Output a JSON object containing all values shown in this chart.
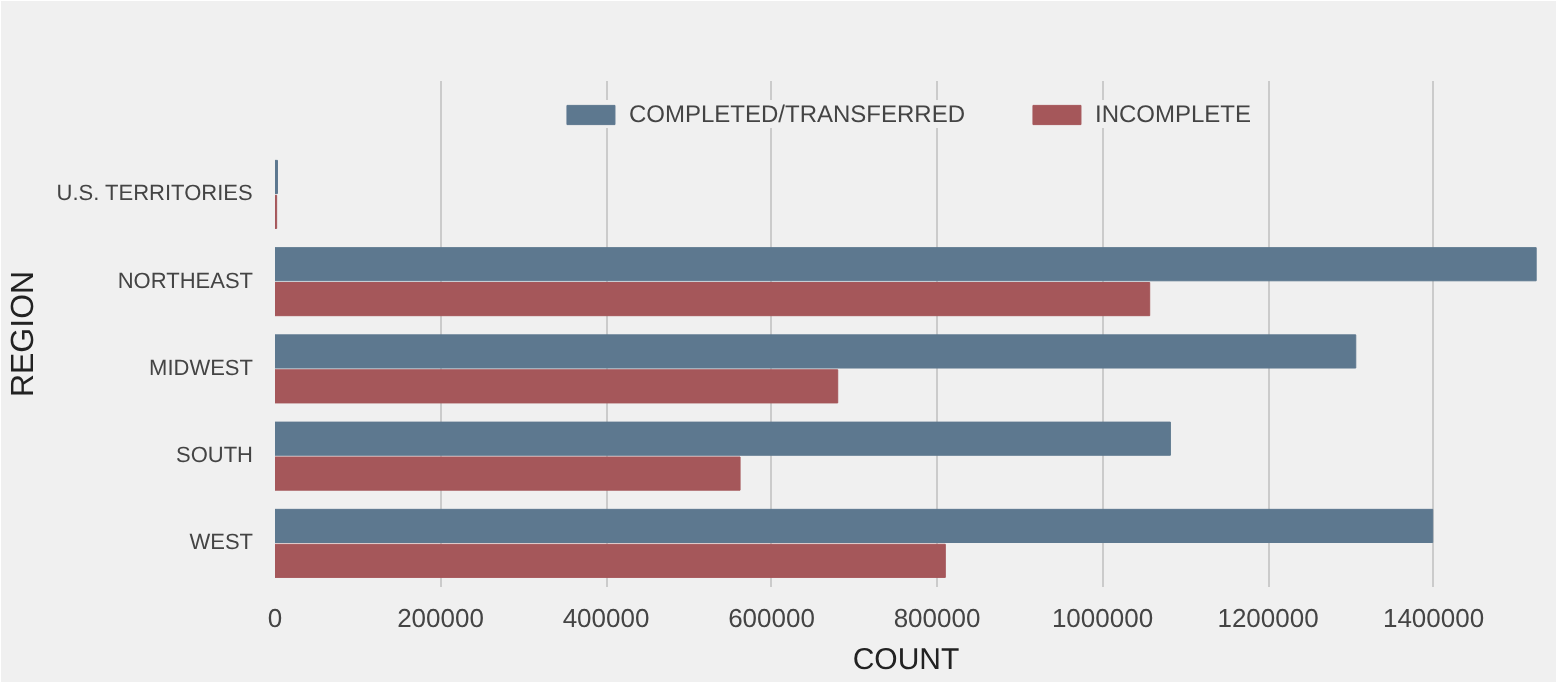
{
  "chart_data": {
    "type": "bar",
    "orientation": "horizontal",
    "xlabel": "COUNT",
    "ylabel": "REGION",
    "categories": [
      "U.S. TERRITORIES",
      "NORTHEAST",
      "MIDWEST",
      "SOUTH",
      "WEST"
    ],
    "series": [
      {
        "name": "COMPLETED/TRANSFERRED",
        "color": "#5d788f",
        "values": [
          3000,
          1524000,
          1306000,
          1082000,
          1399000
        ]
      },
      {
        "name": "INCOMPLETE",
        "color": "#a5575a",
        "values": [
          2000,
          1057000,
          680000,
          562000,
          810000
        ]
      }
    ],
    "xlim": [
      0,
      1525000
    ],
    "xticks": [
      0,
      200000,
      400000,
      600000,
      800000,
      1000000,
      1200000,
      1400000
    ],
    "grid": "x",
    "legend": "top"
  }
}
